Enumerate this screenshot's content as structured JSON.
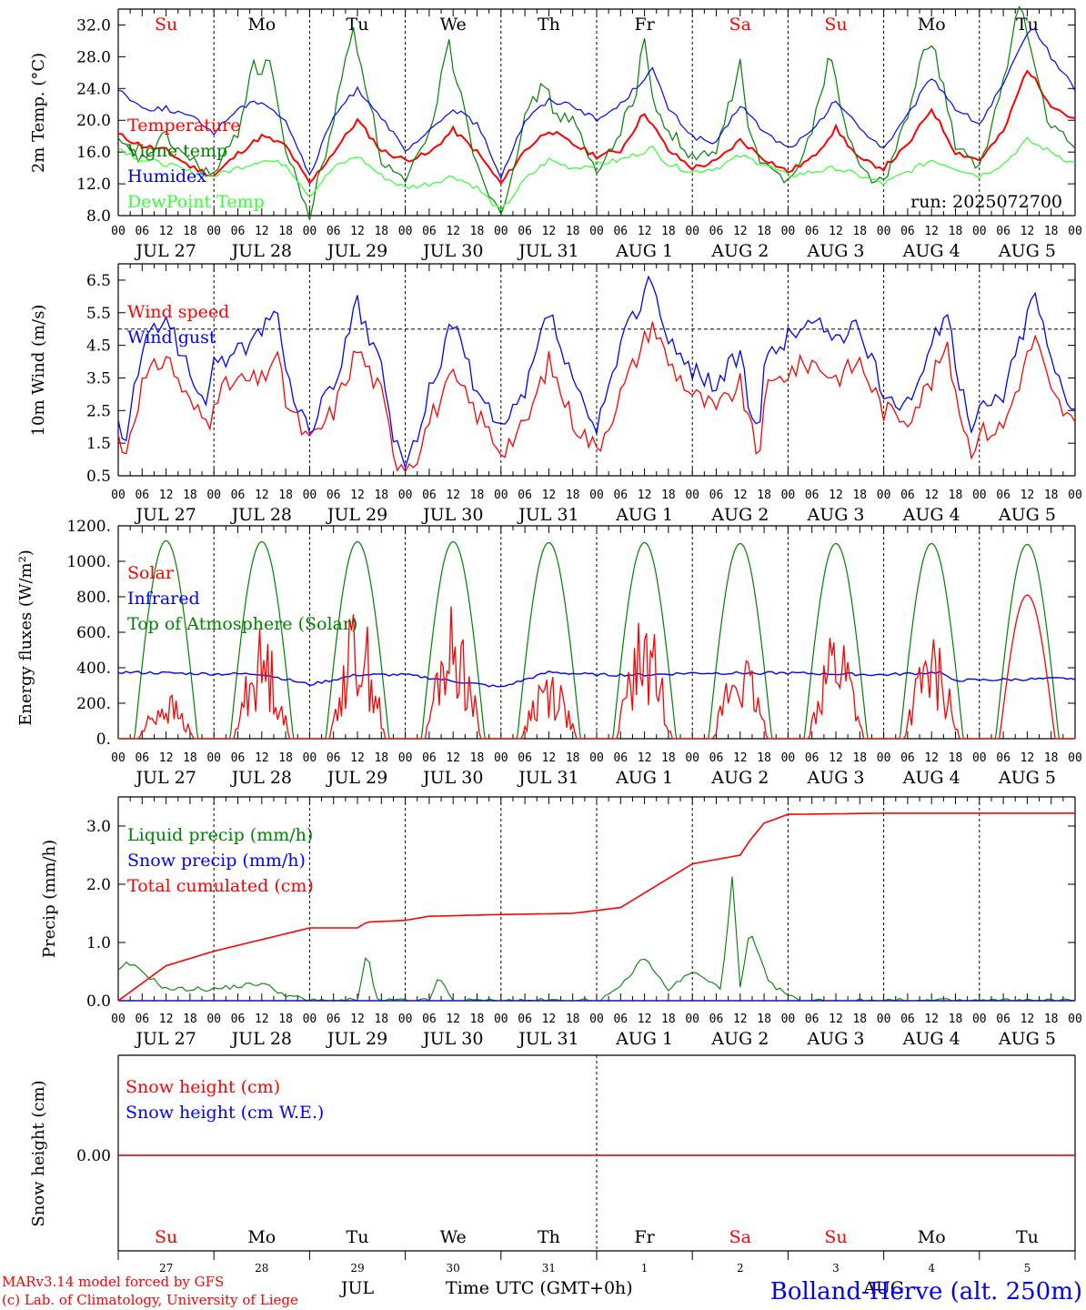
{
  "colors": {
    "red": "#ff0000",
    "dark_green": "#008000",
    "light_green": "#33ff33",
    "blue": "#0000ff",
    "black": "#000000"
  },
  "time_axis": {
    "hour_ticks": [
      "00",
      "06",
      "12",
      "18"
    ],
    "final_tick": "00",
    "day_labels": [
      "JUL 27",
      "JUL 28",
      "JUL 29",
      "JUL 30",
      "JUL 31",
      "AUG  1",
      "AUG  2",
      "AUG  3",
      "AUG  4",
      "AUG  5"
    ],
    "weekdays": [
      "Su",
      "Mo",
      "Tu",
      "We",
      "Th",
      "Fr",
      "Sa",
      "Su",
      "Mo",
      "Tu"
    ],
    "weekday_colors": [
      "#ff0000",
      "#000000",
      "#000000",
      "#000000",
      "#000000",
      "#000000",
      "#ff0000",
      "#ff0000",
      "#000000",
      "#000000"
    ],
    "day_numbers": [
      "27",
      "28",
      "29",
      "30",
      "31",
      "1",
      "2",
      "3",
      "4",
      "5"
    ],
    "month_labels": [
      "JUL",
      "AUG"
    ],
    "title": "Time UTC (GMT+0h)"
  },
  "footer": {
    "model_line": "MARv3.14 model forced by GFS",
    "copyright_line": "(c) Lab. of Climatology, University of Liege",
    "location": "Bolland-Herve (alt. 250m)"
  },
  "chart_data": [
    {
      "type": "line",
      "ylabel": "2m Temp. (°C)",
      "ylim": [
        8,
        34
      ],
      "yticks": [
        "8.0",
        "12.0",
        "16.0",
        "20.0",
        "24.0",
        "28.0",
        "32.0"
      ],
      "annotation": "run: 2025072700",
      "grid": "dashed vertical at midnight",
      "legend_position": "left",
      "series": [
        {
          "name": "Temperature",
          "color": "#ff0000",
          "x_days": [
            0,
            0.25,
            0.5,
            0.75,
            1,
            1.25,
            1.5,
            1.75,
            2,
            2.25,
            2.5,
            2.75,
            3,
            3.25,
            3.5,
            3.75,
            4,
            4.25,
            4.5,
            4.75,
            5,
            5.25,
            5.5,
            5.75,
            6,
            6.25,
            6.5,
            6.75,
            7,
            7.25,
            7.5,
            7.75,
            8,
            8.25,
            8.5,
            8.75,
            9,
            9.25,
            9.5,
            9.75,
            10
          ],
          "values": [
            18.2,
            16.8,
            16.2,
            14.2,
            13.0,
            15.8,
            18.0,
            16.8,
            12.0,
            16.0,
            20.0,
            16.2,
            15.0,
            15.8,
            18.8,
            16.0,
            12.0,
            16.2,
            18.8,
            17.0,
            15.5,
            16.2,
            21.0,
            16.2,
            14.0,
            14.8,
            17.5,
            15.2,
            13.5,
            15.2,
            19.0,
            15.0,
            14.0,
            16.8,
            21.5,
            16.0,
            15.0,
            18.5,
            26.5,
            22.0,
            20.0
          ]
        },
        {
          "name": "Vigne temp",
          "color": "#008000",
          "x_days": [
            0,
            0.25,
            0.45,
            0.5,
            0.75,
            1,
            1.25,
            1.42,
            1.5,
            1.58,
            1.75,
            2,
            2.25,
            2.45,
            2.5,
            2.6,
            2.75,
            3,
            3.25,
            3.45,
            3.5,
            3.6,
            3.75,
            4,
            4.25,
            4.45,
            4.55,
            4.75,
            5,
            5.25,
            5.42,
            5.5,
            5.6,
            5.75,
            6,
            6.25,
            6.5,
            6.6,
            6.75,
            7,
            7.25,
            7.45,
            7.5,
            7.6,
            7.75,
            8,
            8.25,
            8.45,
            8.55,
            8.75,
            9,
            9.25,
            9.42,
            9.5,
            9.6,
            9.75,
            10
          ],
          "values": [
            17.0,
            15.0,
            17.5,
            17.8,
            15.0,
            13.0,
            18.5,
            28.0,
            25.0,
            28.5,
            16.0,
            8.0,
            20.0,
            32.0,
            29.0,
            24.0,
            15.0,
            12.0,
            18.0,
            30.0,
            27.0,
            23.0,
            14.0,
            8.5,
            20.0,
            25.0,
            21.0,
            20.0,
            13.0,
            19.0,
            24.0,
            31.0,
            21.0,
            19.0,
            15.0,
            16.0,
            27.0,
            18.0,
            14.0,
            12.5,
            18.5,
            29.0,
            25.0,
            19.0,
            14.0,
            12.0,
            20.5,
            30.0,
            28.0,
            17.0,
            13.5,
            25.0,
            35.0,
            31.0,
            25.0,
            19.0,
            16.5
          ]
        },
        {
          "name": "Humidex",
          "color": "#0000ff",
          "x_days": [
            0,
            0.25,
            0.5,
            0.75,
            1,
            1.25,
            1.5,
            1.75,
            2,
            2.25,
            2.5,
            2.75,
            3,
            3.25,
            3.5,
            3.75,
            4,
            4.25,
            4.5,
            4.75,
            5,
            5.25,
            5.58,
            5.75,
            6,
            6.25,
            6.5,
            6.75,
            7,
            7.25,
            7.5,
            7.75,
            8,
            8.25,
            8.5,
            8.75,
            9,
            9.25,
            9.55,
            9.75,
            10
          ],
          "values": [
            24.0,
            21.5,
            21.5,
            20.5,
            18.5,
            21.5,
            22.5,
            20.0,
            13.0,
            20.5,
            24.0,
            20.5,
            16.0,
            18.5,
            21.5,
            19.5,
            13.0,
            20.0,
            22.5,
            22.0,
            20.0,
            22.0,
            26.5,
            21.5,
            18.0,
            17.0,
            22.0,
            18.5,
            16.5,
            18.5,
            22.5,
            19.0,
            16.5,
            20.5,
            25.5,
            21.5,
            19.5,
            24.5,
            32.0,
            28.0,
            24.0
          ]
        },
        {
          "name": "DewPoint Temp",
          "color": "#33ff33",
          "x_days": [
            0,
            0.25,
            0.5,
            0.75,
            1,
            1.25,
            1.5,
            1.75,
            2,
            2.25,
            2.5,
            2.75,
            3,
            3.25,
            3.5,
            3.75,
            4,
            4.25,
            4.5,
            4.75,
            5,
            5.25,
            5.58,
            5.75,
            6,
            6.25,
            6.5,
            6.75,
            7,
            7.25,
            7.5,
            7.75,
            8,
            8.25,
            8.5,
            8.75,
            9,
            9.25,
            9.5,
            9.75,
            10
          ],
          "values": [
            16.5,
            15.0,
            14.5,
            13.5,
            13.0,
            14.0,
            15.0,
            14.5,
            10.5,
            14.0,
            15.5,
            13.0,
            11.5,
            12.0,
            13.0,
            11.5,
            8.5,
            12.5,
            15.0,
            14.0,
            14.5,
            15.0,
            16.5,
            14.5,
            13.5,
            14.0,
            15.5,
            14.5,
            13.0,
            13.5,
            14.0,
            13.0,
            12.0,
            13.5,
            15.0,
            14.0,
            13.0,
            14.5,
            17.5,
            16.0,
            14.5
          ]
        }
      ]
    },
    {
      "type": "line",
      "ylabel": "10m Wind (m/s)",
      "ylim": [
        0.5,
        7.0
      ],
      "yticks": [
        "0.5",
        "1.5",
        "2.5",
        "3.5",
        "4.5",
        "5.5",
        "6.5"
      ],
      "reference_line": 5.0,
      "legend_position": "left",
      "series": [
        {
          "name": "Wind speed",
          "color": "#ff0000",
          "x_days": [
            0,
            0.05,
            0.25,
            0.5,
            0.75,
            0.95,
            1,
            1.25,
            1.5,
            1.65,
            1.75,
            2,
            2.25,
            2.5,
            2.75,
            2.9,
            3,
            3.1,
            3.25,
            3.5,
            3.75,
            4,
            4.25,
            4.5,
            4.75,
            5,
            5.25,
            5.58,
            5.75,
            6,
            6.25,
            6.5,
            6.6,
            6.7,
            6.75,
            7,
            7.25,
            7.5,
            7.75,
            8,
            8.25,
            8.5,
            8.65,
            8.8,
            8.9,
            9,
            9.25,
            9.58,
            9.75,
            10
          ],
          "values": [
            1.8,
            1.0,
            3.3,
            4.2,
            2.7,
            2.1,
            3.0,
            3.4,
            3.4,
            4.3,
            2.8,
            1.5,
            2.5,
            4.4,
            3.0,
            1.0,
            0.9,
            1.0,
            2.2,
            3.5,
            2.4,
            1.3,
            2.0,
            4.0,
            2.2,
            1.3,
            3.0,
            5.2,
            4.0,
            3.0,
            2.5,
            3.3,
            2.0,
            1.0,
            3.0,
            3.7,
            4.0,
            3.5,
            4.0,
            2.5,
            2.3,
            3.4,
            4.5,
            2.5,
            1.3,
            1.8,
            2.0,
            4.8,
            3.0,
            2.0
          ]
        },
        {
          "name": "Wind gust",
          "color": "#0000ff",
          "x_days": [
            0,
            0.05,
            0.25,
            0.5,
            0.75,
            0.95,
            1,
            1.25,
            1.5,
            1.65,
            1.75,
            2,
            2.25,
            2.5,
            2.75,
            2.9,
            3,
            3.1,
            3.25,
            3.5,
            3.75,
            4,
            4.25,
            4.5,
            4.75,
            5,
            5.25,
            5.58,
            5.75,
            6,
            6.25,
            6.5,
            6.6,
            6.7,
            6.75,
            7,
            7.25,
            7.5,
            7.75,
            8,
            8.25,
            8.5,
            8.65,
            8.8,
            8.9,
            9,
            9.25,
            9.58,
            9.75,
            10
          ],
          "values": [
            2.1,
            1.3,
            4.3,
            5.5,
            3.5,
            2.8,
            4.0,
            4.3,
            4.8,
            6.0,
            3.5,
            1.9,
            3.3,
            5.7,
            3.8,
            1.3,
            1.1,
            1.3,
            3.0,
            5.3,
            3.0,
            1.8,
            3.0,
            5.6,
            3.3,
            1.8,
            4.5,
            6.7,
            4.5,
            3.8,
            3.3,
            4.3,
            2.5,
            1.4,
            4.0,
            4.8,
            5.2,
            4.8,
            5.0,
            3.0,
            2.8,
            4.3,
            5.8,
            3.3,
            1.8,
            2.5,
            3.0,
            6.2,
            4.0,
            2.6
          ]
        }
      ]
    },
    {
      "type": "line",
      "ylabel": "Energy fluxes (W/m²)",
      "ylim": [
        0,
        1200
      ],
      "yticks": [
        "0.",
        "200.",
        "400.",
        "600.",
        "800.",
        "1000.",
        "1200."
      ],
      "legend_position": "left",
      "series": [
        {
          "name": "Solar",
          "color": "#ff0000",
          "daily_peak_times": [
            [
              0.35,
              0.5
            ],
            [
              1.4,
              1.55
            ],
            [
              2.37,
              2.55
            ],
            [
              3.45,
              3.52
            ],
            [
              4.3,
              4.45
            ],
            [
              5.38,
              5.55
            ],
            [
              6.42,
              6.52
            ],
            [
              7.42,
              7.6
            ],
            [
              8.45,
              8.62
            ],
            [
              9.5
            ]
          ],
          "daily_peak_values": [
            [
              260,
              270
            ],
            [
              590,
              630
            ],
            [
              760,
              770
            ],
            [
              760,
              720
            ],
            [
              430,
              400
            ],
            [
              670,
              700
            ],
            [
              500,
              430
            ],
            [
              620,
              680
            ],
            [
              560,
              570
            ],
            [
              810
            ]
          ]
        },
        {
          "name": "Infrared",
          "color": "#0000ff",
          "x_days": [
            0,
            1,
            1.5,
            2,
            2.5,
            3,
            4,
            4.5,
            5,
            5.5,
            6,
            7,
            8,
            8.6,
            8.7,
            9,
            10
          ],
          "values": [
            375,
            365,
            365,
            305,
            360,
            360,
            290,
            375,
            360,
            360,
            370,
            370,
            360,
            375,
            330,
            330,
            340
          ]
        },
        {
          "name": "Top of Atmosphere (Solar)",
          "color": "#008000",
          "daily_peak": [
            1115,
            1110,
            1110,
            1110,
            1105,
            1105,
            1100,
            1100,
            1100,
            1095
          ]
        }
      ]
    },
    {
      "type": "line",
      "ylabel": "Precip (mm/h)",
      "ylim": [
        0,
        3.5
      ],
      "yticks": [
        "0.0",
        "1.0",
        "2.0",
        "3.0"
      ],
      "legend_position": "left",
      "series": [
        {
          "name": "Liquid precip (mm/h)",
          "color": "#008000",
          "x_days": [
            0,
            0.1,
            0.25,
            0.5,
            1,
            1.5,
            1.75,
            2,
            2.5,
            2.6,
            2.7,
            3,
            3.25,
            3.35,
            3.5,
            4,
            5,
            5.2,
            5.5,
            5.6,
            5.75,
            6,
            6.3,
            6.42,
            6.5,
            6.6,
            6.8,
            7,
            7.1,
            8,
            9,
            10
          ],
          "values": [
            0.5,
            0.65,
            0.5,
            0.2,
            0.2,
            0.3,
            0.1,
            0.0,
            0.0,
            0.85,
            0.0,
            0.0,
            0.0,
            0.4,
            0.0,
            0.0,
            0.0,
            0.15,
            0.75,
            0.5,
            0.2,
            0.5,
            0.2,
            2.15,
            0.2,
            1.2,
            0.3,
            0.1,
            0.0,
            0.0,
            0.0,
            0.0
          ]
        },
        {
          "name": "Snow precip (mm/h)",
          "color": "#0000ff",
          "x_days": [
            0,
            10
          ],
          "values": [
            0,
            0
          ]
        },
        {
          "name": "Total cumulated (cm)",
          "color": "#ff0000",
          "x_days": [
            0,
            0.5,
            1,
            1.5,
            2,
            2.5,
            2.6,
            3,
            3.25,
            4,
            4.75,
            5.25,
            5.75,
            6,
            6.5,
            6.6,
            6.75,
            7,
            8,
            9,
            10
          ],
          "values": [
            0.0,
            0.6,
            0.85,
            1.05,
            1.25,
            1.25,
            1.35,
            1.38,
            1.45,
            1.48,
            1.5,
            1.6,
            2.1,
            2.35,
            2.5,
            2.75,
            3.05,
            3.2,
            3.22,
            3.22,
            3.22
          ]
        }
      ]
    },
    {
      "type": "line",
      "ylabel": "Snow height (cm)",
      "yticks": [
        "0.00"
      ],
      "legend_position": "left",
      "series": [
        {
          "name": "Snow height (cm)",
          "color": "#ff0000",
          "x_days": [
            0,
            10
          ],
          "values": [
            0,
            0
          ]
        },
        {
          "name": "Snow height (cm W.E.)",
          "color": "#0000ff",
          "x_days": [
            0,
            10
          ],
          "values": [
            0,
            0
          ]
        }
      ]
    }
  ]
}
